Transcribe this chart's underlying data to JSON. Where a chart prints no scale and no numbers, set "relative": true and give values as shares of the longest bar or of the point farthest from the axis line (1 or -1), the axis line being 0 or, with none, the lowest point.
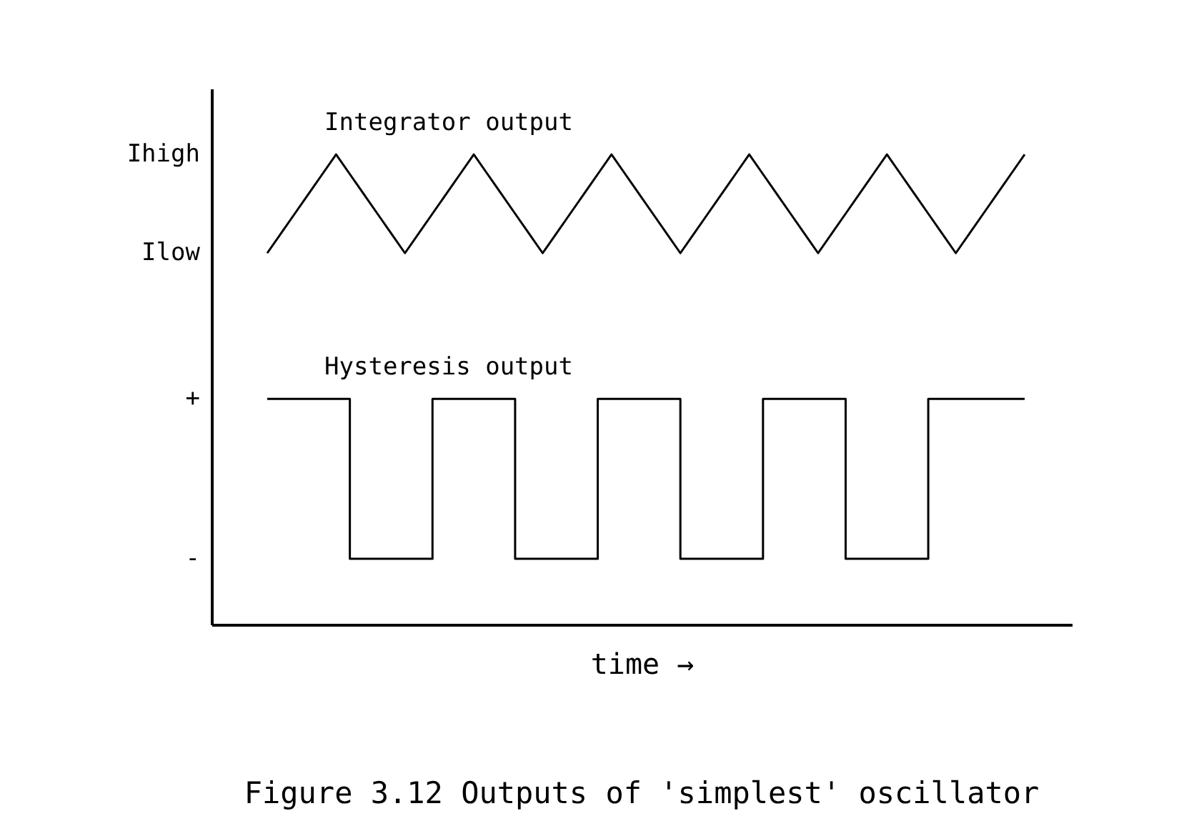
{
  "chart_data": {
    "type": "line",
    "relative": true,
    "title": "Figure 3.12  Outputs of 'simplest' oscillator",
    "xlabel": "time →",
    "grid": false,
    "legend": false,
    "categories": [
      null,
      null,
      null,
      null,
      null,
      null,
      null,
      null,
      null,
      null,
      null,
      null,
      null,
      null,
      null,
      null,
      null,
      null,
      null,
      null,
      null,
      null,
      null,
      null,
      null,
      null,
      null,
      null,
      null,
      null,
      null,
      null,
      null,
      null,
      null,
      null,
      null,
      null,
      null,
      null,
      null,
      null,
      null,
      null,
      null,
      null,
      null,
      null,
      null,
      null,
      null,
      null,
      null,
      null,
      null,
      null
    ],
    "series": [
      {
        "name": "Integrator output",
        "color": "#000000",
        "values": [
          0.79,
          0.832,
          0.874,
          0.916,
          0.958,
          1,
          0.958,
          0.916,
          0.874,
          0.832,
          0.79,
          0.832,
          0.874,
          0.916,
          0.958,
          1,
          0.958,
          0.916,
          0.874,
          0.832,
          0.79,
          0.832,
          0.874,
          0.916,
          0.958,
          1,
          0.958,
          0.916,
          0.874,
          0.832,
          0.79,
          0.832,
          0.874,
          0.916,
          0.958,
          1,
          0.958,
          0.916,
          0.874,
          0.832,
          0.79,
          0.832,
          0.874,
          0.916,
          0.958,
          1,
          0.958,
          0.916,
          0.874,
          0.832,
          0.79,
          0.832,
          0.874,
          0.916,
          0.958,
          1
        ]
      },
      {
        "name": "Hysteresis output",
        "type": "step",
        "color": "#000000",
        "values": [
          0.48,
          0.48,
          0.48,
          0.48,
          0.48,
          0.48,
          0.14,
          0.14,
          0.14,
          0.14,
          0.14,
          0.14,
          0.48,
          0.48,
          0.48,
          0.48,
          0.48,
          0.48,
          0.14,
          0.14,
          0.14,
          0.14,
          0.14,
          0.14,
          0.48,
          0.48,
          0.48,
          0.48,
          0.48,
          0.48,
          0.14,
          0.14,
          0.14,
          0.14,
          0.14,
          0.14,
          0.48,
          0.48,
          0.48,
          0.48,
          0.48,
          0.48,
          0.14,
          0.14,
          0.14,
          0.14,
          0.14,
          0.14,
          0.48,
          0.48,
          0.48,
          0.48,
          0.48,
          0.48,
          0.48,
          0.48
        ]
      }
    ],
    "annotations": [
      "Ihigh",
      "Ilow",
      "+",
      "-"
    ]
  }
}
